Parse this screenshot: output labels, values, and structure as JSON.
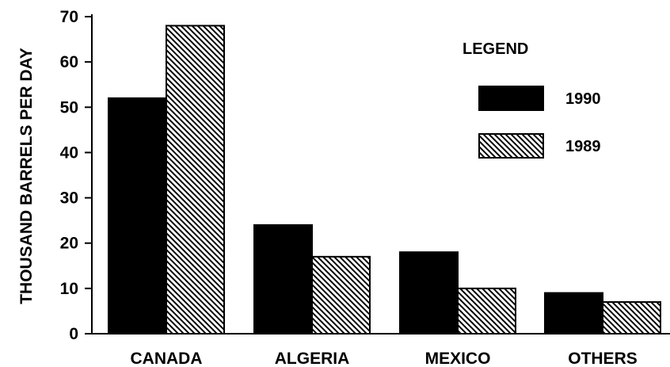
{
  "chart_data": {
    "type": "bar",
    "categories": [
      "CANADA",
      "ALGERIA",
      "MEXICO",
      "OTHERS"
    ],
    "series": [
      {
        "name": "1990",
        "values": [
          52,
          24,
          18,
          9
        ],
        "fill": "solid",
        "color": "#000000"
      },
      {
        "name": "1989",
        "values": [
          68,
          17,
          10,
          7
        ],
        "fill": "hatched",
        "color": "#000000"
      }
    ],
    "xlabel": "",
    "ylabel": "THOUSAND BARRELS PER DAY",
    "ylim": [
      0,
      70
    ],
    "yticks": [
      0,
      10,
      20,
      30,
      40,
      50,
      60,
      70
    ],
    "legend_title": "LEGEND",
    "legend_position": "top-right",
    "grid": false
  }
}
